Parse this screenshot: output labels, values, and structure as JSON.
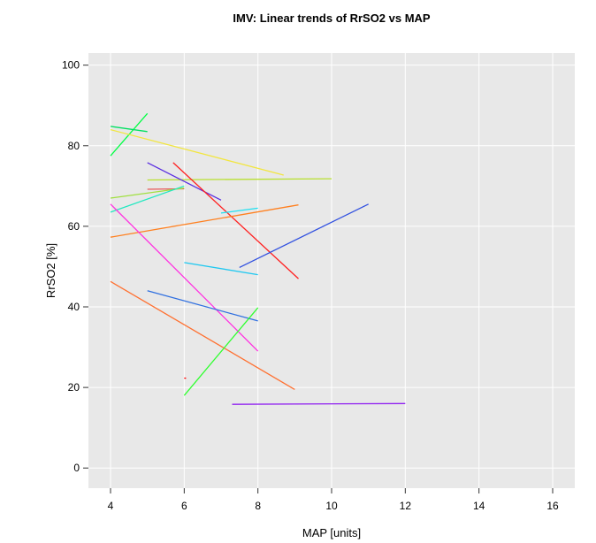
{
  "chart_data": {
    "type": "line",
    "title": "IMV: Linear trends of RrSO2 vs MAP",
    "xlabel": "MAP [units]",
    "ylabel": "RrSO2 [%]",
    "xlim": [
      3.4,
      16.6
    ],
    "ylim": [
      -5,
      103
    ],
    "x_ticks": [
      4,
      6,
      8,
      10,
      12,
      14,
      16
    ],
    "y_ticks": [
      0,
      20,
      40,
      60,
      80,
      100
    ],
    "grid": true,
    "background": "#e8e8e8",
    "grid_color": "#ffffff",
    "series": [
      {
        "color": "#00ff44",
        "x": [
          4,
          5
        ],
        "y": [
          77.5,
          88
        ]
      },
      {
        "color": "#00e060",
        "x": [
          4,
          5
        ],
        "y": [
          84.8,
          83.5
        ]
      },
      {
        "color": "#f2e640",
        "x": [
          4,
          8.7
        ],
        "y": [
          84,
          72.7
        ]
      },
      {
        "color": "#b8e030",
        "x": [
          5,
          10
        ],
        "y": [
          71.5,
          71.8
        ]
      },
      {
        "color": "#5a2ee0",
        "x": [
          5,
          7
        ],
        "y": [
          75.8,
          66.5
        ]
      },
      {
        "color": "#e85a5a",
        "x": [
          5,
          6
        ],
        "y": [
          69.2,
          69.3
        ]
      },
      {
        "color": "#a0e040",
        "x": [
          4,
          6
        ],
        "y": [
          67,
          69.5
        ]
      },
      {
        "color": "#20e8c0",
        "x": [
          4,
          6
        ],
        "y": [
          63.5,
          70
        ]
      },
      {
        "color": "#ff2020",
        "x": [
          5.7,
          9.1
        ],
        "y": [
          75.8,
          47
        ]
      },
      {
        "color": "#20e0f0",
        "x": [
          7,
          8
        ],
        "y": [
          63.3,
          64.5
        ]
      },
      {
        "color": "#ff8020",
        "x": [
          4,
          9.1
        ],
        "y": [
          57.3,
          65.3
        ]
      },
      {
        "color": "#ff30e0",
        "x": [
          4,
          8
        ],
        "y": [
          65.5,
          29
        ]
      },
      {
        "color": "#3050e0",
        "x": [
          7.5,
          11
        ],
        "y": [
          49.8,
          65.5
        ]
      },
      {
        "color": "#20c8f0",
        "x": [
          6,
          8
        ],
        "y": [
          51,
          48
        ]
      },
      {
        "color": "#ff7030",
        "x": [
          4,
          9
        ],
        "y": [
          46.3,
          19.5
        ]
      },
      {
        "color": "#3070e0",
        "x": [
          5,
          8
        ],
        "y": [
          44,
          36.5
        ]
      },
      {
        "color": "#30ff30",
        "x": [
          6,
          8
        ],
        "y": [
          18,
          39.8
        ]
      },
      {
        "color": "#9020f0",
        "x": [
          7.3,
          12
        ],
        "y": [
          15.8,
          16
        ]
      },
      {
        "color": "#ff0000",
        "x": [
          6,
          6.05
        ],
        "y": [
          22.3,
          22.3
        ]
      }
    ]
  }
}
